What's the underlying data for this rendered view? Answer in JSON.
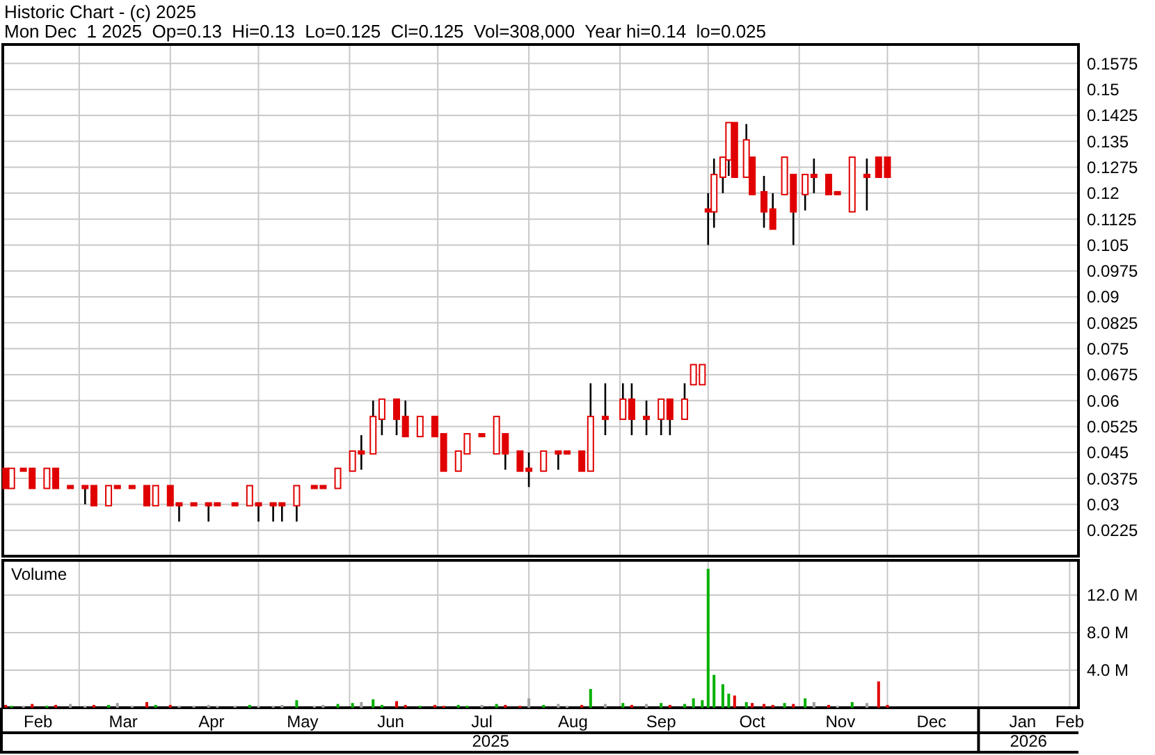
{
  "chart_data": [
    {
      "type": "candlestick",
      "title": "Historic Chart - (c) 2025",
      "subtitle": "Mon Dec  1 2025  Op=0.13  Hi=0.13  Lo=0.125  Cl=0.125  Vol=308,000  Year hi=0.14  lo=0.025",
      "color": "#e00000",
      "grid": true,
      "tick_labels": "y",
      "x": [
        "2025-02-04",
        "2025-02-06",
        "2025-02-10",
        "2025-02-13",
        "2025-02-18",
        "2025-02-21",
        "2025-02-26",
        "2025-03-03",
        "2025-03-06",
        "2025-03-11",
        "2025-03-14",
        "2025-03-19",
        "2025-03-24",
        "2025-03-27",
        "2025-04-01",
        "2025-04-04",
        "2025-04-09",
        "2025-04-14",
        "2025-04-17",
        "2025-04-23",
        "2025-04-28",
        "2025-05-01",
        "2025-05-06",
        "2025-05-09",
        "2025-05-14",
        "2025-05-20",
        "2025-05-23",
        "2025-05-28",
        "2025-06-02",
        "2025-06-05",
        "2025-06-09",
        "2025-06-12",
        "2025-06-17",
        "2025-06-20",
        "2025-06-25",
        "2025-06-30",
        "2025-07-03",
        "2025-07-08",
        "2025-07-11",
        "2025-07-16",
        "2025-07-21",
        "2025-07-24",
        "2025-07-29",
        "2025-08-01",
        "2025-08-06",
        "2025-08-11",
        "2025-08-14",
        "2025-08-19",
        "2025-08-22",
        "2025-08-27",
        "2025-09-02",
        "2025-09-05",
        "2025-09-10",
        "2025-09-15",
        "2025-09-18",
        "2025-09-23",
        "2025-09-26",
        "2025-09-29",
        "2025-10-01",
        "2025-10-03",
        "2025-10-06",
        "2025-10-08",
        "2025-10-10",
        "2025-10-14",
        "2025-10-16",
        "2025-10-20",
        "2025-10-23",
        "2025-10-27",
        "2025-10-30",
        "2025-11-03",
        "2025-11-06",
        "2025-11-11",
        "2025-11-14",
        "2025-11-19",
        "2025-11-24",
        "2025-11-28",
        "2025-12-01"
      ],
      "ohlc": [
        [
          0.04,
          0.04,
          0.035,
          0.035
        ],
        [
          0.035,
          0.04,
          0.035,
          0.04
        ],
        [
          0.04,
          0.04,
          0.04,
          0.04
        ],
        [
          0.04,
          0.04,
          0.035,
          0.035
        ],
        [
          0.035,
          0.04,
          0.035,
          0.04
        ],
        [
          0.04,
          0.04,
          0.035,
          0.035
        ],
        [
          0.035,
          0.035,
          0.035,
          0.035
        ],
        [
          0.035,
          0.035,
          0.03,
          0.035
        ],
        [
          0.035,
          0.035,
          0.03,
          0.03
        ],
        [
          0.03,
          0.035,
          0.03,
          0.035
        ],
        [
          0.035,
          0.035,
          0.035,
          0.035
        ],
        [
          0.035,
          0.035,
          0.035,
          0.035
        ],
        [
          0.035,
          0.035,
          0.03,
          0.03
        ],
        [
          0.03,
          0.035,
          0.03,
          0.035
        ],
        [
          0.035,
          0.035,
          0.03,
          0.03
        ],
        [
          0.03,
          0.03,
          0.025,
          0.03
        ],
        [
          0.03,
          0.03,
          0.03,
          0.03
        ],
        [
          0.03,
          0.03,
          0.025,
          0.03
        ],
        [
          0.03,
          0.03,
          0.03,
          0.03
        ],
        [
          0.03,
          0.03,
          0.03,
          0.03
        ],
        [
          0.03,
          0.035,
          0.03,
          0.035
        ],
        [
          0.03,
          0.03,
          0.025,
          0.03
        ],
        [
          0.03,
          0.03,
          0.025,
          0.03
        ],
        [
          0.03,
          0.03,
          0.025,
          0.03
        ],
        [
          0.03,
          0.035,
          0.025,
          0.035
        ],
        [
          0.035,
          0.035,
          0.035,
          0.035
        ],
        [
          0.035,
          0.035,
          0.035,
          0.035
        ],
        [
          0.035,
          0.04,
          0.035,
          0.04
        ],
        [
          0.04,
          0.045,
          0.04,
          0.045
        ],
        [
          0.045,
          0.05,
          0.04,
          0.045
        ],
        [
          0.045,
          0.06,
          0.045,
          0.055
        ],
        [
          0.055,
          0.06,
          0.05,
          0.06
        ],
        [
          0.06,
          0.06,
          0.05,
          0.055
        ],
        [
          0.055,
          0.06,
          0.05,
          0.05
        ],
        [
          0.05,
          0.055,
          0.05,
          0.055
        ],
        [
          0.055,
          0.055,
          0.05,
          0.05
        ],
        [
          0.05,
          0.05,
          0.04,
          0.04
        ],
        [
          0.04,
          0.045,
          0.04,
          0.045
        ],
        [
          0.045,
          0.05,
          0.045,
          0.05
        ],
        [
          0.05,
          0.05,
          0.05,
          0.05
        ],
        [
          0.045,
          0.055,
          0.045,
          0.055
        ],
        [
          0.05,
          0.05,
          0.04,
          0.045
        ],
        [
          0.045,
          0.045,
          0.04,
          0.04
        ],
        [
          0.04,
          0.045,
          0.035,
          0.04
        ],
        [
          0.04,
          0.045,
          0.04,
          0.045
        ],
        [
          0.045,
          0.045,
          0.04,
          0.045
        ],
        [
          0.045,
          0.045,
          0.045,
          0.045
        ],
        [
          0.045,
          0.045,
          0.04,
          0.04
        ],
        [
          0.04,
          0.065,
          0.04,
          0.055
        ],
        [
          0.055,
          0.065,
          0.05,
          0.055
        ],
        [
          0.055,
          0.065,
          0.055,
          0.06
        ],
        [
          0.06,
          0.065,
          0.05,
          0.055
        ],
        [
          0.055,
          0.06,
          0.05,
          0.055
        ],
        [
          0.055,
          0.06,
          0.05,
          0.06
        ],
        [
          0.06,
          0.06,
          0.05,
          0.055
        ],
        [
          0.055,
          0.065,
          0.055,
          0.06
        ],
        [
          0.065,
          0.07,
          0.065,
          0.07
        ],
        [
          0.065,
          0.07,
          0.065,
          0.07
        ],
        [
          0.115,
          0.12,
          0.105,
          0.115
        ],
        [
          0.115,
          0.13,
          0.11,
          0.125
        ],
        [
          0.125,
          0.13,
          0.12,
          0.13
        ],
        [
          0.13,
          0.14,
          0.125,
          0.14
        ],
        [
          0.14,
          0.14,
          0.125,
          0.125
        ],
        [
          0.125,
          0.14,
          0.125,
          0.135
        ],
        [
          0.13,
          0.13,
          0.12,
          0.12
        ],
        [
          0.12,
          0.125,
          0.11,
          0.115
        ],
        [
          0.115,
          0.12,
          0.11,
          0.11
        ],
        [
          0.12,
          0.13,
          0.12,
          0.13
        ],
        [
          0.125,
          0.125,
          0.105,
          0.115
        ],
        [
          0.12,
          0.125,
          0.115,
          0.125
        ],
        [
          0.125,
          0.13,
          0.12,
          0.125
        ],
        [
          0.125,
          0.125,
          0.12,
          0.12
        ],
        [
          0.12,
          0.12,
          0.12,
          0.12
        ],
        [
          0.115,
          0.13,
          0.115,
          0.13
        ],
        [
          0.125,
          0.13,
          0.115,
          0.125
        ],
        [
          0.13,
          0.13,
          0.125,
          0.125
        ],
        [
          0.13,
          0.13,
          0.125,
          0.125
        ]
      ],
      "xlim": [
        "2025-02-03",
        "2026-02-04"
      ],
      "xticks": [
        {
          "value": "2025-03-01",
          "label": null
        },
        {
          "value": "2025-04-01",
          "label": null
        },
        {
          "value": "2025-05-01",
          "label": null
        },
        {
          "value": "2025-06-01",
          "label": null
        },
        {
          "value": "2025-07-01",
          "label": null
        },
        {
          "value": "2025-08-01",
          "label": null
        },
        {
          "value": "2025-09-01",
          "label": null
        },
        {
          "value": "2025-10-01",
          "label": null
        },
        {
          "value": "2025-11-01",
          "label": null
        },
        {
          "value": "2025-12-01",
          "label": null
        },
        {
          "value": "2026-01-01",
          "label": null
        }
      ],
      "ylim": [
        0.015,
        0.163
      ],
      "yticks": [
        0.0225,
        0.03,
        0.0375,
        0.045,
        0.0525,
        0.06,
        0.0675,
        0.075,
        0.0825,
        0.09,
        0.0975,
        0.105,
        0.1125,
        0.12,
        0.1275,
        0.135,
        0.1425,
        0.15,
        0.1575
      ]
    },
    {
      "type": "bar",
      "title": "Volume",
      "grid": true,
      "x": [
        "2025-02-04",
        "2025-02-06",
        "2025-02-10",
        "2025-02-13",
        "2025-02-18",
        "2025-02-21",
        "2025-02-26",
        "2025-03-03",
        "2025-03-06",
        "2025-03-11",
        "2025-03-14",
        "2025-03-19",
        "2025-03-24",
        "2025-03-27",
        "2025-04-01",
        "2025-04-04",
        "2025-04-09",
        "2025-04-14",
        "2025-04-17",
        "2025-04-23",
        "2025-04-28",
        "2025-05-01",
        "2025-05-06",
        "2025-05-09",
        "2025-05-14",
        "2025-05-20",
        "2025-05-23",
        "2025-05-28",
        "2025-06-02",
        "2025-06-05",
        "2025-06-09",
        "2025-06-12",
        "2025-06-17",
        "2025-06-20",
        "2025-06-25",
        "2025-06-30",
        "2025-07-03",
        "2025-07-08",
        "2025-07-11",
        "2025-07-16",
        "2025-07-21",
        "2025-07-24",
        "2025-07-29",
        "2025-08-01",
        "2025-08-06",
        "2025-08-11",
        "2025-08-14",
        "2025-08-19",
        "2025-08-22",
        "2025-08-27",
        "2025-09-02",
        "2025-09-05",
        "2025-09-10",
        "2025-09-15",
        "2025-09-18",
        "2025-09-23",
        "2025-09-26",
        "2025-09-29",
        "2025-10-01",
        "2025-10-03",
        "2025-10-06",
        "2025-10-08",
        "2025-10-10",
        "2025-10-14",
        "2025-10-16",
        "2025-10-20",
        "2025-10-23",
        "2025-10-27",
        "2025-10-30",
        "2025-11-03",
        "2025-11-06",
        "2025-11-11",
        "2025-11-14",
        "2025-11-19",
        "2025-11-24",
        "2025-11-28",
        "2025-12-01"
      ],
      "values": [
        0.3,
        0.2,
        0.2,
        0.4,
        0.2,
        0.3,
        0.4,
        0.2,
        0.3,
        0.3,
        0.5,
        0.2,
        0.6,
        0.3,
        0.3,
        0.2,
        0.2,
        0.3,
        0.2,
        0.2,
        0.3,
        0.2,
        0.2,
        0.3,
        0.8,
        0.2,
        0.3,
        0.4,
        0.5,
        0.6,
        0.9,
        0.3,
        0.7,
        0.3,
        0.2,
        0.3,
        0.2,
        0.3,
        0.2,
        0.3,
        0.4,
        0.3,
        0.2,
        1.0,
        0.3,
        0.4,
        0.2,
        0.3,
        2.0,
        0.4,
        0.5,
        0.3,
        0.4,
        0.5,
        0.3,
        0.4,
        1.0,
        0.8,
        14.8,
        3.5,
        2.5,
        1.5,
        1.3,
        0.6,
        0.5,
        0.4,
        0.3,
        0.5,
        0.4,
        1.0,
        0.6,
        0.3,
        0.2,
        0.6,
        0.5,
        2.8,
        0.3
      ],
      "colors": [
        "#e00000",
        "#00b000",
        "#a0a0a0",
        "#e00000",
        "#00b000",
        "#e00000",
        "#a0a0a0",
        "#a0a0a0",
        "#e00000",
        "#00b000",
        "#a0a0a0",
        "#a0a0a0",
        "#e00000",
        "#00b000",
        "#e00000",
        "#a0a0a0",
        "#a0a0a0",
        "#a0a0a0",
        "#a0a0a0",
        "#a0a0a0",
        "#00b000",
        "#a0a0a0",
        "#a0a0a0",
        "#a0a0a0",
        "#00b000",
        "#a0a0a0",
        "#a0a0a0",
        "#00b000",
        "#00b000",
        "#a0a0a0",
        "#00b000",
        "#00b000",
        "#e00000",
        "#e00000",
        "#00b000",
        "#e00000",
        "#e00000",
        "#00b000",
        "#00b000",
        "#a0a0a0",
        "#00b000",
        "#e00000",
        "#e00000",
        "#a0a0a0",
        "#00b000",
        "#a0a0a0",
        "#a0a0a0",
        "#e00000",
        "#00b000",
        "#a0a0a0",
        "#00b000",
        "#e00000",
        "#a0a0a0",
        "#00b000",
        "#e00000",
        "#00b000",
        "#00b000",
        "#00b000",
        "#00b000",
        "#00b000",
        "#00b000",
        "#00b000",
        "#e00000",
        "#00b000",
        "#e00000",
        "#e00000",
        "#e00000",
        "#00b000",
        "#e00000",
        "#00b000",
        "#a0a0a0",
        "#e00000",
        "#a0a0a0",
        "#00b000",
        "#a0a0a0",
        "#e00000",
        "#e00000"
      ],
      "xlim": [
        "2025-02-03",
        "2026-02-04"
      ],
      "xticks": [
        {
          "value": "2025-02-15",
          "label": "Feb"
        },
        {
          "value": "2025-03-01",
          "label": null
        },
        {
          "value": "2025-03-16",
          "label": "Mar"
        },
        {
          "value": "2025-04-01",
          "label": null
        },
        {
          "value": "2025-04-15",
          "label": "Apr"
        },
        {
          "value": "2025-05-01",
          "label": null
        },
        {
          "value": "2025-05-16",
          "label": "May"
        },
        {
          "value": "2025-06-01",
          "label": null
        },
        {
          "value": "2025-06-15",
          "label": "Jun"
        },
        {
          "value": "2025-07-01",
          "label": null
        },
        {
          "value": "2025-07-16",
          "label": "Jul"
        },
        {
          "value": "2025-08-01",
          "label": null
        },
        {
          "value": "2025-08-16",
          "label": "Aug"
        },
        {
          "value": "2025-09-01",
          "label": null
        },
        {
          "value": "2025-09-15",
          "label": "Sep"
        },
        {
          "value": "2025-10-01",
          "label": null
        },
        {
          "value": "2025-10-16",
          "label": "Oct"
        },
        {
          "value": "2025-11-01",
          "label": null
        },
        {
          "value": "2025-11-15",
          "label": "Nov"
        },
        {
          "value": "2025-12-01",
          "label": null
        },
        {
          "value": "2025-12-16",
          "label": "Dec"
        },
        {
          "value": "2026-01-01",
          "label": null
        },
        {
          "value": "2026-01-16",
          "label": "Jan"
        },
        {
          "value": "2026-02-01",
          "label": "Feb"
        }
      ],
      "ylim": [
        0,
        15.7
      ],
      "yticks": [
        {
          "value": 4,
          "label": "4.0 M"
        },
        {
          "value": 8,
          "label": "8.0 M"
        },
        {
          "value": 12,
          "label": "12.0 M"
        }
      ],
      "annotations": [
        "2025",
        "2026"
      ]
    }
  ]
}
